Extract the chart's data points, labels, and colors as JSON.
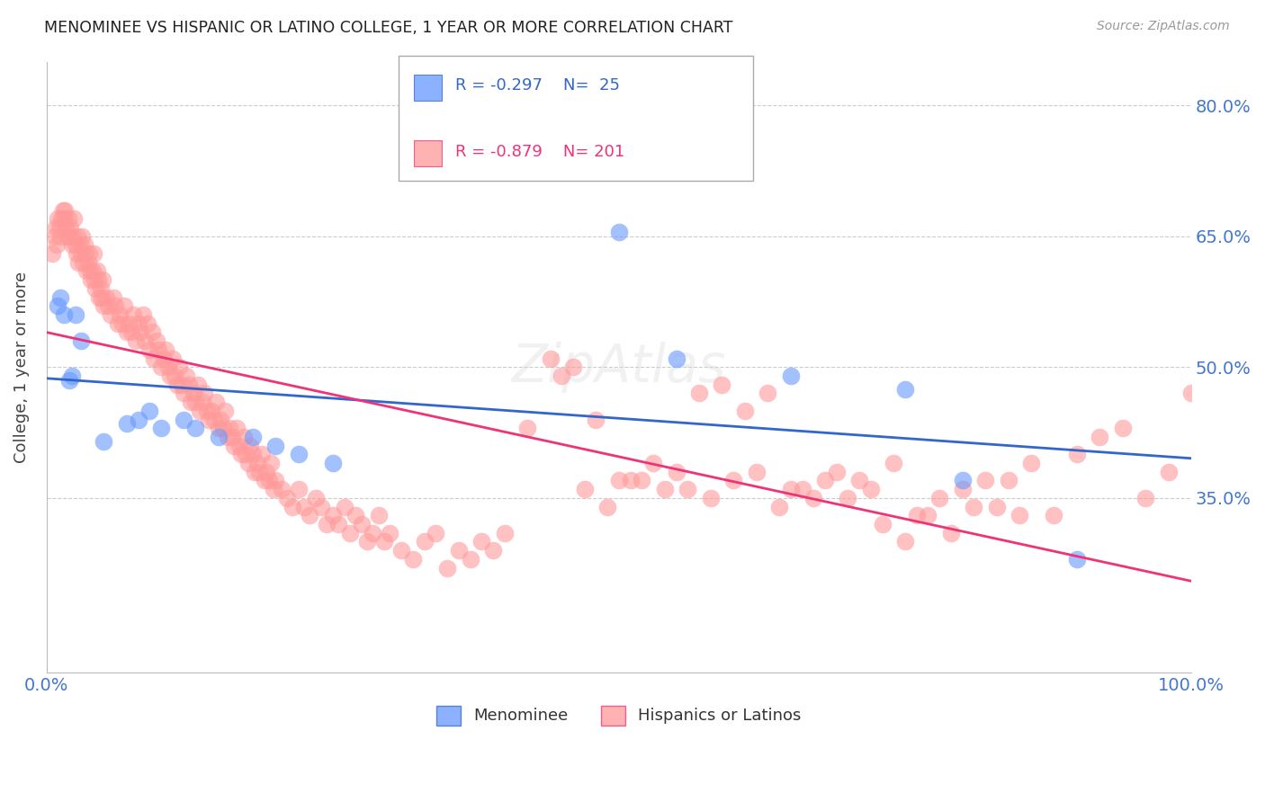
{
  "title": "MENOMINEE VS HISPANIC OR LATINO COLLEGE, 1 YEAR OR MORE CORRELATION CHART",
  "source": "Source: ZipAtlas.com",
  "ylabel": "College, 1 year or more",
  "legend_labels": [
    "Menominee",
    "Hispanics or Latinos"
  ],
  "blue_R": -0.297,
  "blue_N": 25,
  "pink_R": -0.879,
  "pink_N": 201,
  "xlim": [
    0.0,
    1.0
  ],
  "ylim": [
    0.15,
    0.85
  ],
  "ytick_vals": [
    0.35,
    0.5,
    0.65,
    0.8
  ],
  "ytick_labels": [
    "35.0%",
    "50.0%",
    "65.0%",
    "80.0%"
  ],
  "xtick_vals": [
    0.0,
    0.5,
    1.0
  ],
  "xtick_labels": [
    "0.0%",
    "",
    "100.0%"
  ],
  "blue_color": "#6699ff",
  "pink_color": "#ff9999",
  "blue_line_color": "#3366cc",
  "pink_line_color": "#ee3377",
  "tick_label_color": "#4477cc",
  "blue_scatter_x": [
    0.01,
    0.012,
    0.015,
    0.02,
    0.022,
    0.025,
    0.03,
    0.05,
    0.07,
    0.08,
    0.09,
    0.1,
    0.12,
    0.13,
    0.15,
    0.18,
    0.2,
    0.22,
    0.25,
    0.5,
    0.55,
    0.65,
    0.75,
    0.8,
    0.9
  ],
  "blue_scatter_y": [
    0.57,
    0.58,
    0.56,
    0.485,
    0.49,
    0.56,
    0.53,
    0.415,
    0.435,
    0.44,
    0.45,
    0.43,
    0.44,
    0.43,
    0.42,
    0.42,
    0.41,
    0.4,
    0.39,
    0.655,
    0.51,
    0.49,
    0.475,
    0.37,
    0.28
  ],
  "pink_scatter_x": [
    0.005,
    0.007,
    0.008,
    0.009,
    0.01,
    0.011,
    0.012,
    0.013,
    0.014,
    0.015,
    0.016,
    0.017,
    0.018,
    0.019,
    0.02,
    0.021,
    0.022,
    0.023,
    0.024,
    0.025,
    0.026,
    0.027,
    0.028,
    0.029,
    0.03,
    0.031,
    0.032,
    0.033,
    0.034,
    0.035,
    0.036,
    0.037,
    0.038,
    0.039,
    0.04,
    0.041,
    0.042,
    0.043,
    0.044,
    0.045,
    0.046,
    0.047,
    0.048,
    0.049,
    0.05,
    0.052,
    0.054,
    0.056,
    0.058,
    0.06,
    0.062,
    0.064,
    0.066,
    0.068,
    0.07,
    0.072,
    0.074,
    0.076,
    0.078,
    0.08,
    0.082,
    0.084,
    0.086,
    0.088,
    0.09,
    0.092,
    0.094,
    0.096,
    0.098,
    0.1,
    0.102,
    0.104,
    0.106,
    0.108,
    0.11,
    0.112,
    0.114,
    0.116,
    0.118,
    0.12,
    0.122,
    0.124,
    0.126,
    0.128,
    0.13,
    0.132,
    0.134,
    0.136,
    0.138,
    0.14,
    0.142,
    0.144,
    0.146,
    0.148,
    0.15,
    0.152,
    0.154,
    0.156,
    0.158,
    0.16,
    0.162,
    0.164,
    0.166,
    0.168,
    0.17,
    0.172,
    0.174,
    0.176,
    0.178,
    0.18,
    0.182,
    0.184,
    0.186,
    0.188,
    0.19,
    0.192,
    0.194,
    0.196,
    0.198,
    0.2,
    0.205,
    0.21,
    0.215,
    0.22,
    0.225,
    0.23,
    0.235,
    0.24,
    0.245,
    0.25,
    0.255,
    0.26,
    0.265,
    0.27,
    0.275,
    0.28,
    0.285,
    0.29,
    0.295,
    0.3,
    0.31,
    0.32,
    0.33,
    0.34,
    0.35,
    0.36,
    0.37,
    0.38,
    0.39,
    0.4,
    0.42,
    0.44,
    0.46,
    0.48,
    0.5,
    0.52,
    0.54,
    0.56,
    0.58,
    0.6,
    0.62,
    0.64,
    0.66,
    0.68,
    0.7,
    0.72,
    0.74,
    0.76,
    0.78,
    0.8,
    0.82,
    0.84,
    0.86,
    0.88,
    0.9,
    0.92,
    0.94,
    0.96,
    0.98,
    1.0,
    0.45,
    0.47,
    0.49,
    0.51,
    0.53,
    0.55,
    0.57,
    0.59,
    0.61,
    0.63,
    0.65,
    0.67,
    0.69,
    0.71,
    0.73,
    0.75,
    0.77,
    0.79,
    0.81,
    0.83,
    0.85
  ],
  "pink_scatter_y": [
    0.63,
    0.65,
    0.66,
    0.64,
    0.67,
    0.66,
    0.65,
    0.67,
    0.68,
    0.67,
    0.68,
    0.66,
    0.65,
    0.67,
    0.65,
    0.66,
    0.64,
    0.65,
    0.67,
    0.64,
    0.63,
    0.65,
    0.62,
    0.64,
    0.63,
    0.65,
    0.62,
    0.64,
    0.63,
    0.61,
    0.62,
    0.63,
    0.61,
    0.6,
    0.61,
    0.63,
    0.6,
    0.59,
    0.61,
    0.6,
    0.58,
    0.59,
    0.58,
    0.6,
    0.57,
    0.58,
    0.57,
    0.56,
    0.58,
    0.57,
    0.55,
    0.56,
    0.55,
    0.57,
    0.54,
    0.55,
    0.54,
    0.56,
    0.53,
    0.55,
    0.54,
    0.56,
    0.53,
    0.55,
    0.52,
    0.54,
    0.51,
    0.53,
    0.52,
    0.5,
    0.51,
    0.52,
    0.5,
    0.49,
    0.51,
    0.49,
    0.48,
    0.5,
    0.48,
    0.47,
    0.49,
    0.48,
    0.46,
    0.47,
    0.46,
    0.48,
    0.45,
    0.46,
    0.47,
    0.45,
    0.44,
    0.45,
    0.44,
    0.46,
    0.43,
    0.44,
    0.43,
    0.45,
    0.42,
    0.43,
    0.42,
    0.41,
    0.43,
    0.41,
    0.4,
    0.42,
    0.4,
    0.39,
    0.41,
    0.4,
    0.38,
    0.39,
    0.38,
    0.4,
    0.37,
    0.38,
    0.37,
    0.39,
    0.36,
    0.37,
    0.36,
    0.35,
    0.34,
    0.36,
    0.34,
    0.33,
    0.35,
    0.34,
    0.32,
    0.33,
    0.32,
    0.34,
    0.31,
    0.33,
    0.32,
    0.3,
    0.31,
    0.33,
    0.3,
    0.31,
    0.29,
    0.28,
    0.3,
    0.31,
    0.27,
    0.29,
    0.28,
    0.3,
    0.29,
    0.31,
    0.43,
    0.51,
    0.5,
    0.44,
    0.37,
    0.37,
    0.36,
    0.36,
    0.35,
    0.37,
    0.38,
    0.34,
    0.36,
    0.37,
    0.35,
    0.36,
    0.39,
    0.33,
    0.35,
    0.36,
    0.37,
    0.37,
    0.39,
    0.33,
    0.4,
    0.42,
    0.43,
    0.35,
    0.38,
    0.47,
    0.49,
    0.36,
    0.34,
    0.37,
    0.39,
    0.38,
    0.47,
    0.48,
    0.45,
    0.47,
    0.36,
    0.35,
    0.38,
    0.37,
    0.32,
    0.3,
    0.33,
    0.31,
    0.34,
    0.34,
    0.33
  ]
}
